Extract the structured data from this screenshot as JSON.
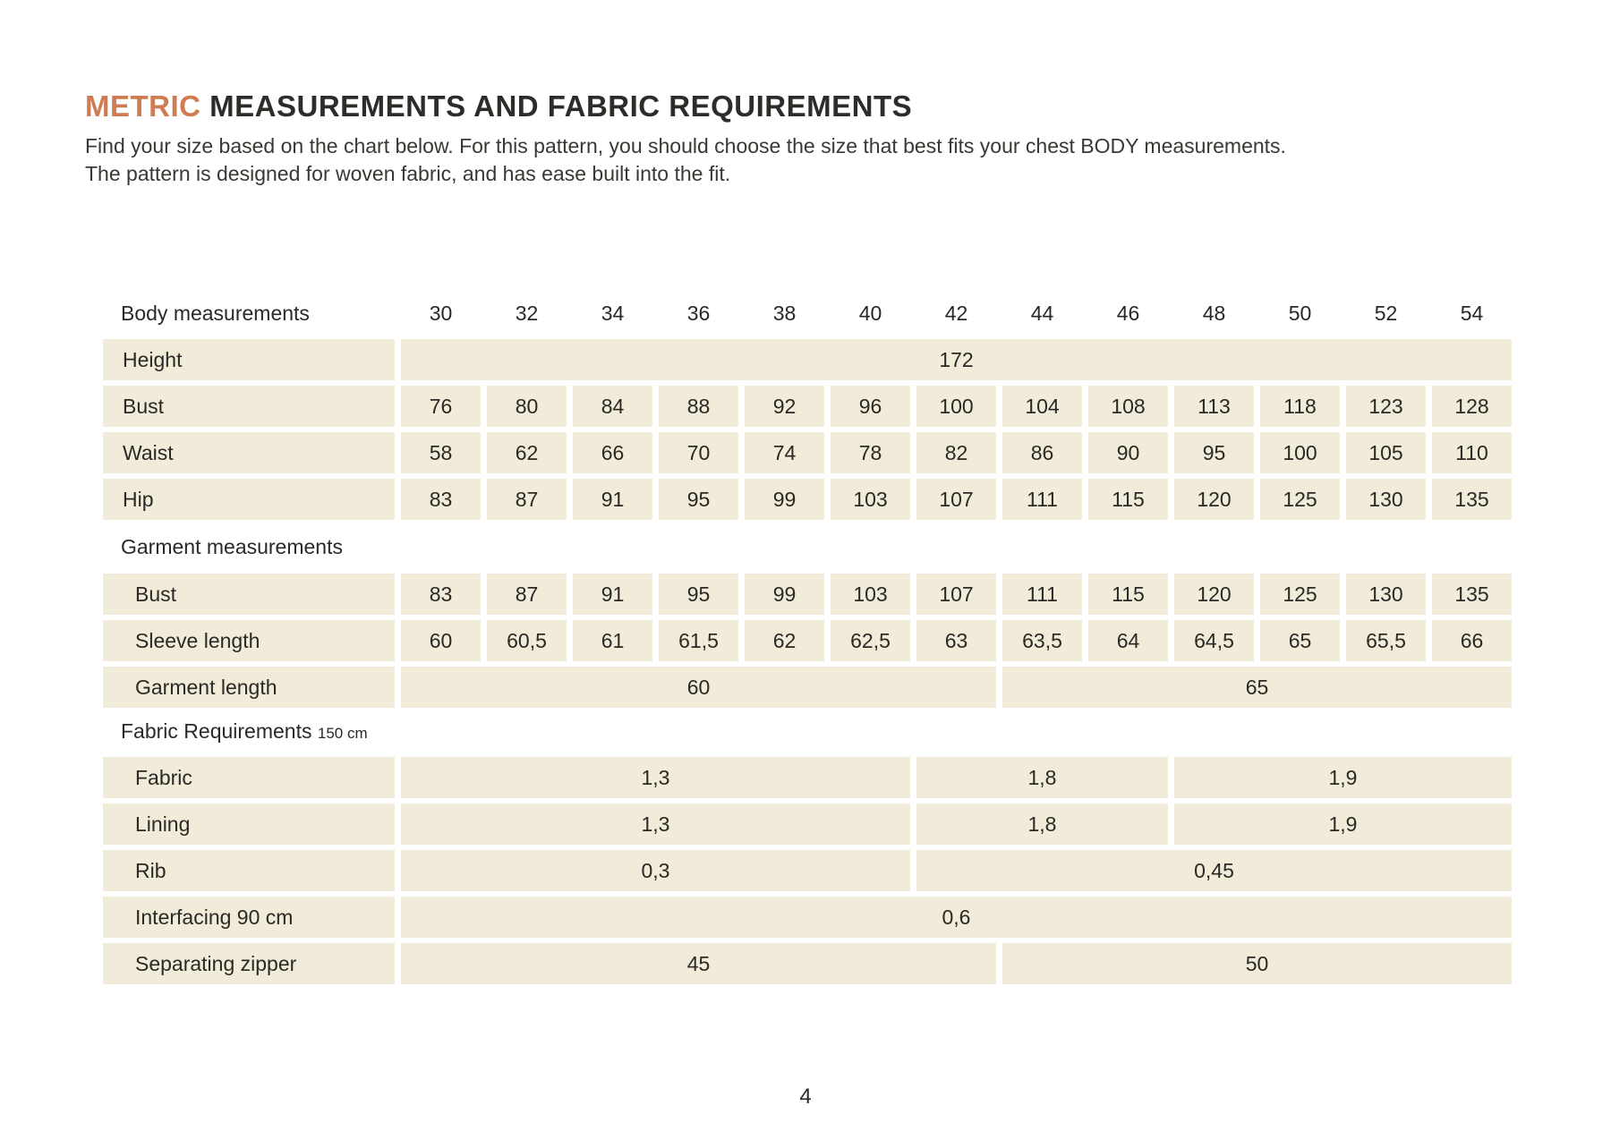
{
  "page": {
    "title": {
      "highlight": "METRIC",
      "rest": " MEASUREMENTS AND FABRIC REQUIREMENTS"
    },
    "intro_line1": "Find your size based on the chart below. For this pattern, you should choose the size that best fits your chest BODY measurements.",
    "intro_line2": "The pattern is designed for woven fabric, and has ease built into the fit.",
    "page_number": "4"
  },
  "colors": {
    "accent": "#cf7c52",
    "cell_background": "#f1ebd9",
    "text": "#2b2925"
  },
  "table": {
    "sizes": [
      "30",
      "32",
      "34",
      "36",
      "38",
      "40",
      "42",
      "44",
      "46",
      "48",
      "50",
      "52",
      "54"
    ],
    "body_section": {
      "header_label": "Body measurements",
      "rows": [
        {
          "label": "Height",
          "spans": [
            {
              "cols": 13,
              "value": "172"
            }
          ]
        },
        {
          "label": "Bust",
          "cells": [
            "76",
            "80",
            "84",
            "88",
            "92",
            "96",
            "100",
            "104",
            "108",
            "113",
            "118",
            "123",
            "128"
          ]
        },
        {
          "label": "Waist",
          "cells": [
            "58",
            "62",
            "66",
            "70",
            "74",
            "78",
            "82",
            "86",
            "90",
            "95",
            "100",
            "105",
            "110"
          ]
        },
        {
          "label": "Hip",
          "cells": [
            "83",
            "87",
            "91",
            "95",
            "99",
            "103",
            "107",
            "111",
            "115",
            "120",
            "125",
            "130",
            "135"
          ]
        }
      ]
    },
    "garment_section": {
      "header_label": "Garment measurements",
      "rows": [
        {
          "label": "Bust",
          "cells": [
            "83",
            "87",
            "91",
            "95",
            "99",
            "103",
            "107",
            "111",
            "115",
            "120",
            "125",
            "130",
            "135"
          ]
        },
        {
          "label": "Sleeve length",
          "cells": [
            "60",
            "60,5",
            "61",
            "61,5",
            "62",
            "62,5",
            "63",
            "63,5",
            "64",
            "64,5",
            "65",
            "65,5",
            "66"
          ]
        },
        {
          "label": "Garment length",
          "spans": [
            {
              "cols": 7,
              "value": "60"
            },
            {
              "cols": 6,
              "value": "65"
            }
          ]
        }
      ]
    },
    "fabric_section": {
      "header_label": "Fabric Requirements",
      "header_suffix": "150 cm",
      "rows": [
        {
          "label": "Fabric",
          "spans": [
            {
              "cols": 6,
              "value": "1,3"
            },
            {
              "cols": 3,
              "value": "1,8"
            },
            {
              "cols": 4,
              "value": "1,9"
            }
          ]
        },
        {
          "label": "Lining",
          "spans": [
            {
              "cols": 6,
              "value": "1,3"
            },
            {
              "cols": 3,
              "value": "1,8"
            },
            {
              "cols": 4,
              "value": "1,9"
            }
          ]
        },
        {
          "label": "Rib",
          "spans": [
            {
              "cols": 6,
              "value": "0,3"
            },
            {
              "cols": 7,
              "value": "0,45"
            }
          ]
        },
        {
          "label": "Interfacing 90 cm",
          "spans": [
            {
              "cols": 13,
              "value": "0,6"
            }
          ]
        },
        {
          "label": "Separating zipper",
          "spans": [
            {
              "cols": 7,
              "value": "45"
            },
            {
              "cols": 6,
              "value": "50"
            }
          ]
        }
      ]
    }
  }
}
